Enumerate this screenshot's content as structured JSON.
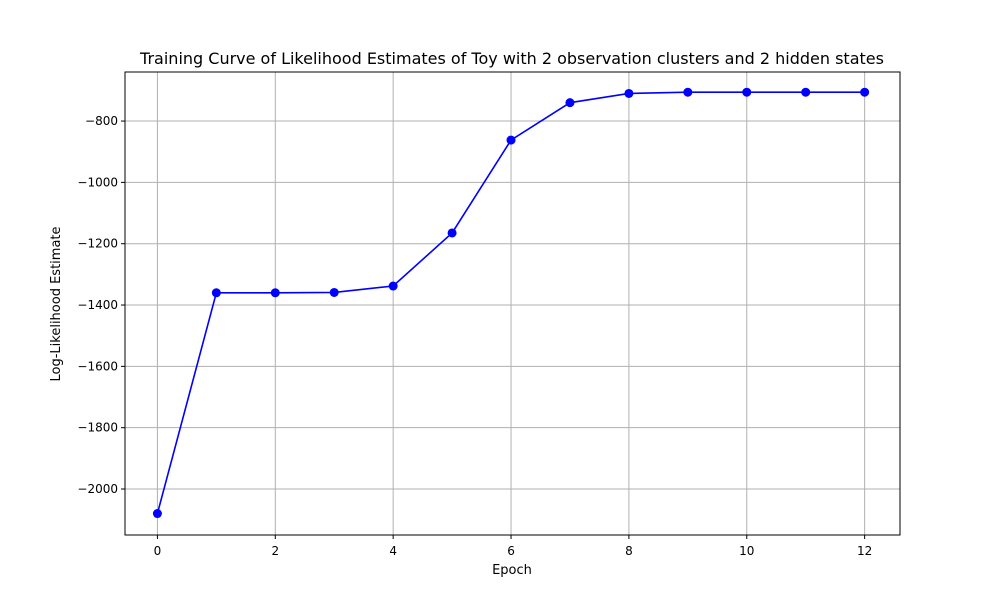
{
  "chart_data": {
    "type": "line",
    "title": "Training Curve of Likelihood Estimates of Toy with 2 observation clusters and 2 hidden states",
    "xlabel": "Epoch",
    "ylabel": "Log-Likelihood Estimate",
    "x": [
      0,
      1,
      2,
      3,
      4,
      5,
      6,
      7,
      8,
      9,
      10,
      11,
      12
    ],
    "series": [
      {
        "values": [
          -2080,
          -1360,
          -1360,
          -1359,
          -1338,
          -1165,
          -862,
          -740,
          -710,
          -706,
          -706,
          -706,
          -706
        ],
        "color": "#0000ff",
        "marker": "circle"
      }
    ],
    "xlim": [
      -0.55,
      12.6
    ],
    "ylim": [
      -2150,
      -640
    ],
    "xticks": [
      0,
      2,
      4,
      6,
      8,
      10,
      12
    ],
    "xtick_labels": [
      "0",
      "2",
      "4",
      "6",
      "8",
      "10",
      "12"
    ],
    "yticks": [
      -2000,
      -1800,
      -1600,
      -1400,
      -1200,
      -1000,
      -800
    ],
    "ytick_labels": [
      "−2000",
      "−1800",
      "−1600",
      "−1400",
      "−1200",
      "−1000",
      "−800"
    ],
    "grid": true,
    "legend": "none"
  }
}
